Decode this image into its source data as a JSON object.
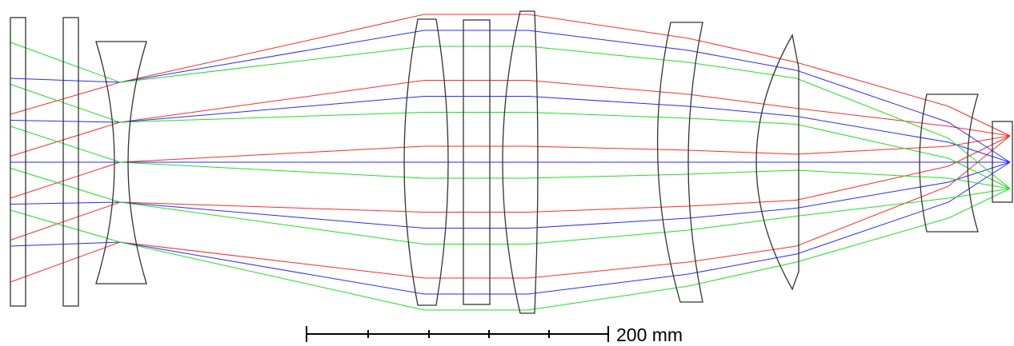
{
  "scale_bar": {
    "label": "200 mm"
  }
}
